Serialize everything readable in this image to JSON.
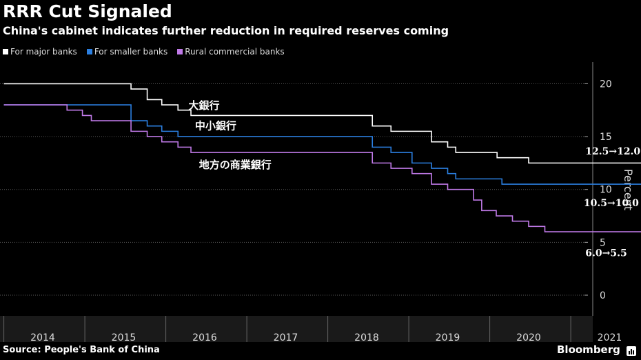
{
  "title": "RRR Cut Signaled",
  "subtitle": "China's cabinet indicates further reduction in required reserves coming",
  "source": "Source: People's Bank of China",
  "brand": "Bloomberg",
  "colors": {
    "background": "#000000",
    "major": "#ffffff",
    "smaller": "#2b7fe0",
    "rural": "#c07ae8",
    "grid": "#5a5a5a",
    "cut": "#9a9a9a"
  },
  "chart_data": {
    "type": "line",
    "ylabel": "Percent",
    "ylim": [
      -2,
      22
    ],
    "yticks": [
      0,
      5,
      10,
      15,
      20
    ],
    "xlim": [
      2013.52,
      2021.52
    ],
    "xticks": [
      "2014",
      "2015",
      "2016",
      "2017",
      "2018",
      "2019",
      "2020",
      "2021"
    ],
    "grid": true,
    "legend_position": "top-left",
    "series": [
      {
        "name": "For major banks",
        "color": "#ffffff",
        "step": true,
        "x": [
          2013.52,
          2015.09,
          2015.29,
          2015.47,
          2015.67,
          2015.83,
          2017.99,
          2018.07,
          2018.3,
          2018.8,
          2019.0,
          2019.1,
          2019.61,
          2019.7,
          2020.0,
          2021.45
        ],
        "y": [
          20.0,
          19.5,
          18.5,
          18.0,
          17.5,
          17.0,
          17.0,
          16.0,
          15.5,
          14.5,
          14.0,
          13.5,
          13.0,
          13.0,
          12.5,
          12.5
        ]
      },
      {
        "name": "For smaller banks",
        "color": "#2b7fe0",
        "step": true,
        "x": [
          2013.52,
          2014.49,
          2015.09,
          2015.29,
          2015.47,
          2015.67,
          2015.83,
          2017.99,
          2018.07,
          2018.3,
          2018.56,
          2018.8,
          2019.0,
          2019.1,
          2019.67,
          2020.0,
          2021.45
        ],
        "y": [
          18.0,
          18.0,
          16.5,
          16.0,
          15.5,
          15.0,
          15.0,
          15.0,
          14.0,
          13.5,
          12.5,
          12.0,
          11.5,
          11.0,
          10.5,
          10.5,
          10.5
        ]
      },
      {
        "name": "Rural commercial banks",
        "color": "#c07ae8",
        "step": true,
        "x": [
          2013.52,
          2014.3,
          2014.49,
          2014.6,
          2015.09,
          2015.29,
          2015.47,
          2015.67,
          2015.83,
          2017.99,
          2018.07,
          2018.3,
          2018.56,
          2018.8,
          2019.0,
          2019.32,
          2019.42,
          2019.6,
          2019.8,
          2020.0,
          2020.2,
          2020.28,
          2021.45
        ],
        "y": [
          18.0,
          17.5,
          17.0,
          16.5,
          15.5,
          15.0,
          14.5,
          14.0,
          13.5,
          13.5,
          12.5,
          12.0,
          11.5,
          10.5,
          10.0,
          9.0,
          8.0,
          7.5,
          7.0,
          6.5,
          6.0,
          6.0,
          6.0
        ]
      }
    ],
    "cuts": [
      {
        "series": "For major banks",
        "x": [
          2021.45,
          2021.53
        ],
        "y": [
          12.5,
          12.0
        ]
      },
      {
        "series": "For smaller banks",
        "x": [
          2021.45,
          2021.53
        ],
        "y": [
          10.5,
          10.0
        ]
      },
      {
        "series": "Rural commercial banks",
        "x": [
          2021.45,
          2021.53
        ],
        "y": [
          6.0,
          5.5
        ]
      }
    ],
    "annotations": [
      {
        "text": "大銀行",
        "x": 2015.8,
        "y": 17.6
      },
      {
        "text": "中小銀行",
        "x": 2015.88,
        "y": 15.7
      },
      {
        "text": "地方の商業銀行",
        "x": 2015.93,
        "y": 12.0
      },
      {
        "text": "12.5→12.0",
        "x": 2020.7,
        "y": 13.3
      },
      {
        "text": "10.5→10.0",
        "x": 2020.68,
        "y": 8.4
      },
      {
        "text": "6.0→5.5",
        "x": 2020.7,
        "y": 3.7
      }
    ]
  }
}
